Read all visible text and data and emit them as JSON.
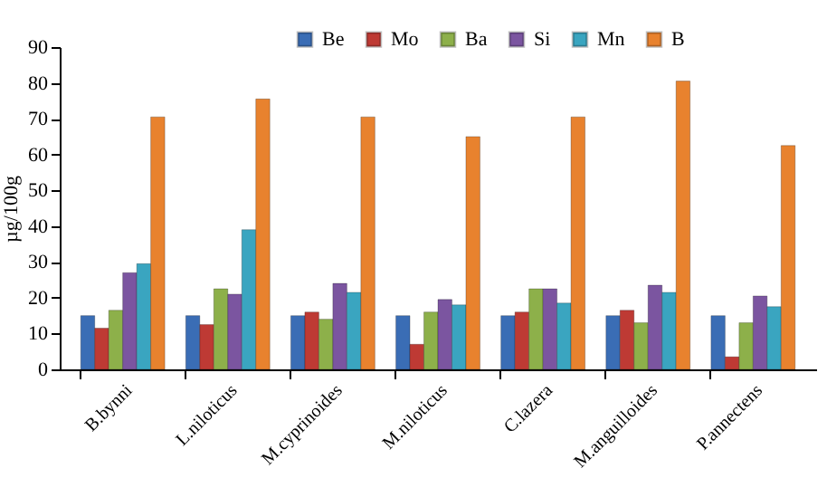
{
  "chart_data": {
    "type": "bar",
    "ylabel": "µg/100g",
    "categories": [
      "B.bynni",
      "L.niloticus",
      "M.cyprinoides",
      "M.niloticus",
      "C.lazera",
      "M.anguilloides",
      "P.annectens"
    ],
    "series": [
      {
        "name": "Be",
        "color": "#3a6db5",
        "values": [
          15,
          15,
          15,
          15,
          15,
          15,
          15
        ]
      },
      {
        "name": "Mo",
        "color": "#be3a34",
        "values": [
          11.5,
          12.5,
          16,
          7,
          16,
          16.5,
          3.5
        ]
      },
      {
        "name": "Ba",
        "color": "#8db04a",
        "values": [
          16.5,
          22.5,
          14,
          16,
          22.5,
          13,
          13
        ]
      },
      {
        "name": "Si",
        "color": "#7b55a0",
        "values": [
          27,
          21,
          24,
          19.5,
          22.5,
          23.5,
          20.5
        ]
      },
      {
        "name": "Mn",
        "color": "#3aa5c0",
        "values": [
          29.5,
          39,
          21.5,
          18,
          18.5,
          21.5,
          17.5
        ]
      },
      {
        "name": "B",
        "color": "#e8822e",
        "values": [
          70.5,
          75.5,
          70.5,
          65,
          70.5,
          80.5,
          62.5
        ]
      }
    ],
    "ylim": [
      0,
      90
    ],
    "yticks": [
      0,
      10,
      20,
      30,
      40,
      50,
      60,
      70,
      80,
      90
    ],
    "grid": false,
    "legend": "top right"
  }
}
